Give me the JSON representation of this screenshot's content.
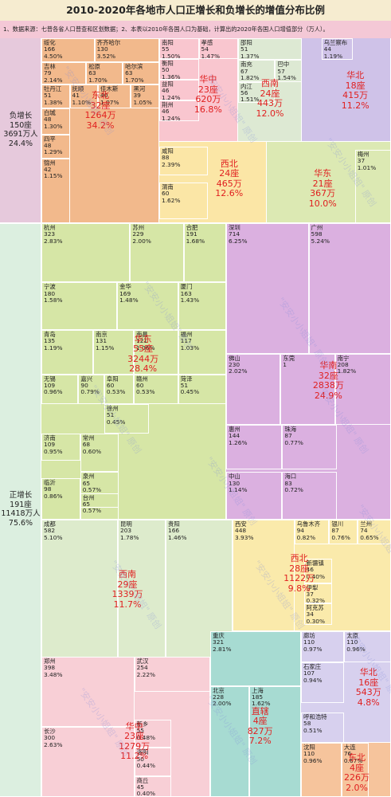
{
  "title": "2010-2020年各地市人口正增长和负增长的增值分布比例",
  "note": "1、数据来源：七普各省人口普查和区划数据；2、本表以2010年各国人口为基础，计算出的2020年各国人口增值部分（万人）。",
  "chart_data": {
    "type": "treemap",
    "title": "2010-2020年各地市人口正增长和负增长的增值分布比例",
    "sides": [
      {
        "name": "负增长",
        "count": "150座",
        "amount": "3691万人",
        "pct": "24.4%"
      },
      {
        "name": "正增长",
        "count": "191座",
        "amount": "11418万人",
        "pct": "75.6%"
      }
    ],
    "groups": [
      {
        "region": "东北",
        "count": "32座",
        "amount": "1264万",
        "pct": "34.2%",
        "color": "#f2b98c",
        "cities": [
          {
            "name": "绥化",
            "value": 166,
            "pct": "4.50%"
          },
          {
            "name": "齐齐哈尔",
            "value": 130,
            "pct": "3.52%"
          },
          {
            "name": "吉林",
            "value": 79,
            "pct": "2.14%"
          },
          {
            "name": "松原",
            "value": 63,
            "pct": "1.70%"
          },
          {
            "name": "哈尔滨",
            "value": 63,
            "pct": "1.70%"
          },
          {
            "name": "牡丹江",
            "value": 51,
            "pct": "1.38%"
          },
          {
            "name": "抚顺",
            "value": 41,
            "pct": "1.10%"
          },
          {
            "name": "佳木斯",
            "value": 40,
            "pct": "1.07%"
          },
          {
            "name": "黑河",
            "value": 39,
            "pct": "1.05%"
          },
          {
            "name": "白城",
            "value": 48,
            "pct": "1.30%"
          },
          {
            "name": "四平",
            "value": 48,
            "pct": "1.29%"
          },
          {
            "name": "锦州",
            "value": 42,
            "pct": "1.15%"
          }
        ]
      },
      {
        "region": "华中",
        "count": "23座",
        "amount": "620万",
        "pct": "16.8%",
        "color": "#f9c6cf",
        "cities": [
          {
            "name": "南阳",
            "value": 55,
            "pct": "1.50%"
          },
          {
            "name": "孝感",
            "value": 54,
            "pct": "1.47%"
          },
          {
            "name": "衡阳",
            "value": 50,
            "pct": "1.36%"
          },
          {
            "name": "益阳",
            "value": 46,
            "pct": "1.24%"
          },
          {
            "name": "荆州",
            "value": 46,
            "pct": "1.24%"
          }
        ]
      },
      {
        "region": "西南",
        "count": "24座",
        "amount": "443万",
        "pct": "12.0%",
        "color": "#dde9d3",
        "cities": [
          {
            "name": "邵阳",
            "value": 51,
            "pct": "1.37%"
          },
          {
            "name": "南充",
            "value": 67,
            "pct": "1.82%"
          },
          {
            "name": "巴中",
            "value": 57,
            "pct": "1.54%"
          },
          {
            "name": "内江",
            "value": 56,
            "pct": "1.51%"
          }
        ]
      },
      {
        "region": "华北",
        "count": "18座",
        "amount": "415万",
        "pct": "11.2%",
        "color": "#cfc2e8",
        "cities": [
          {
            "name": "乌兰察布",
            "value": 44,
            "pct": "1.19%"
          }
        ]
      },
      {
        "region": "西北",
        "count": "24座",
        "amount": "465万",
        "pct": "12.6%",
        "color": "#fbe6a6",
        "cities": [
          {
            "name": "咸阳",
            "value": 88,
            "pct": "2.39%"
          },
          {
            "name": "渭南",
            "value": 60,
            "pct": "1.62%"
          }
        ]
      },
      {
        "region": "华东",
        "count": "21座",
        "amount": "367万",
        "pct": "10.0%",
        "color": "#dce9b3",
        "cities": [
          {
            "name": "梅州",
            "value": 37,
            "pct": "1.01%"
          }
        ]
      },
      {
        "region": "华东",
        "count": "55座",
        "amount": "3244万",
        "pct": "28.4%",
        "color": "#d6e6a6",
        "cities": [
          {
            "name": "杭州",
            "value": 323,
            "pct": "2.83%"
          },
          {
            "name": "苏州",
            "value": 229,
            "pct": "2.00%"
          },
          {
            "name": "合肥",
            "value": 191,
            "pct": "1.68%"
          },
          {
            "name": "宁波",
            "value": 180,
            "pct": "1.58%"
          },
          {
            "name": "金华",
            "value": 169,
            "pct": "1.48%"
          },
          {
            "name": "厦门",
            "value": 163,
            "pct": "1.43%"
          },
          {
            "name": "青岛",
            "value": 135,
            "pct": "1.19%"
          },
          {
            "name": "南京",
            "value": 131,
            "pct": "1.15%"
          },
          {
            "name": "南昌",
            "value": 121,
            "pct": "1.06%"
          },
          {
            "name": "福州",
            "value": 117,
            "pct": "1.03%"
          },
          {
            "name": "无锡",
            "value": 109,
            "pct": "0.96%"
          },
          {
            "name": "嘉兴",
            "value": 90,
            "pct": "0.79%"
          },
          {
            "name": "阜阳",
            "value": 60,
            "pct": "0.53%"
          },
          {
            "name": "赣州",
            "value": 60,
            "pct": "0.53%"
          },
          {
            "name": "菏泽",
            "value": 51,
            "pct": "0.45%"
          },
          {
            "name": "徐州",
            "value": 51,
            "pct": "0.45%"
          },
          {
            "name": "济南",
            "value": 109,
            "pct": "0.95%"
          },
          {
            "name": "常州",
            "value": 68,
            "pct": "0.60%"
          },
          {
            "name": "泉州",
            "value": 65,
            "pct": "0.57%"
          },
          {
            "name": "临沂",
            "value": 98,
            "pct": "0.86%"
          },
          {
            "name": "台州",
            "value": 65,
            "pct": "0.57%"
          }
        ]
      },
      {
        "region": "华南",
        "count": "32座",
        "amount": "2838万",
        "pct": "24.9%",
        "color": "#dbb0e0",
        "cities": [
          {
            "name": "深圳",
            "value": 714,
            "pct": "6.25%"
          },
          {
            "name": "广州",
            "value": 598,
            "pct": "5.24%"
          },
          {
            "name": "佛山",
            "value": 230,
            "pct": "2.02%"
          },
          {
            "name": "东莞",
            "value": 1,
            "pct": ""
          },
          {
            "name": "南宁",
            "value": 208,
            "pct": "1.82%"
          },
          {
            "name": "惠州",
            "value": 144,
            "pct": "1.26%"
          },
          {
            "name": "珠海",
            "value": 87,
            "pct": "0.77%"
          },
          {
            "name": "中山",
            "value": 130,
            "pct": "1.14%"
          },
          {
            "name": "海口",
            "value": 83,
            "pct": "0.72%"
          }
        ]
      },
      {
        "region": "西南",
        "count": "29座",
        "amount": "1339万",
        "pct": "11.7%",
        "color": "#ddebcc",
        "cities": [
          {
            "name": "成都",
            "value": 582,
            "pct": "5.10%"
          },
          {
            "name": "昆明",
            "value": 203,
            "pct": "1.78%"
          },
          {
            "name": "贵阳",
            "value": 166,
            "pct": "1.46%"
          }
        ]
      },
      {
        "region": "西北",
        "count": "28座",
        "amount": "1122万",
        "pct": "9.8%",
        "color": "#faeaab",
        "cities": [
          {
            "name": "西安",
            "value": 448,
            "pct": "3.93%"
          },
          {
            "name": "乌鲁木齐",
            "value": 94,
            "pct": "0.82%"
          },
          {
            "name": "银川",
            "value": 87,
            "pct": "0.76%"
          },
          {
            "name": "兰州",
            "value": 74,
            "pct": "0.65%"
          },
          {
            "name": "新疆镇",
            "value": 46,
            "pct": "0.40%"
          },
          {
            "name": "伊犁",
            "value": 37,
            "pct": "0.32%"
          },
          {
            "name": "阿克苏",
            "value": 34,
            "pct": "0.30%"
          }
        ]
      },
      {
        "region": "直辖",
        "count": "4座",
        "amount": "827万",
        "pct": "7.2%",
        "color": "#a7dbd2",
        "cities": [
          {
            "name": "重庆",
            "value": 321,
            "pct": "2.81%"
          },
          {
            "name": "北京",
            "value": 228,
            "pct": "2.00%"
          },
          {
            "name": "上海",
            "value": 185,
            "pct": "1.62%"
          }
        ]
      },
      {
        "region": "华北",
        "count": "16座",
        "amount": "543万",
        "pct": "4.8%",
        "color": "#d7d0ee",
        "cities": [
          {
            "name": "廊坊",
            "value": 110,
            "pct": "0.97%"
          },
          {
            "name": "太原",
            "value": 110,
            "pct": "0.96%"
          },
          {
            "name": "石家庄",
            "value": 107,
            "pct": "0.94%"
          },
          {
            "name": "呼和浩特",
            "value": 58,
            "pct": "0.51%"
          }
        ]
      },
      {
        "region": "华中",
        "count": "23座",
        "amount": "1279万",
        "pct": "11.2%",
        "color": "#f8cfd6",
        "cities": [
          {
            "name": "郑州",
            "value": 398,
            "pct": "3.48%"
          },
          {
            "name": "武汉",
            "value": 254,
            "pct": "2.22%"
          },
          {
            "name": "长沙",
            "value": 300,
            "pct": "2.63%"
          },
          {
            "name": "新乡",
            "value": 55,
            "pct": "0.48%"
          },
          {
            "name": "洛阳",
            "value": 50,
            "pct": "0.44%"
          },
          {
            "name": "商丘",
            "value": 45,
            "pct": "0.40%"
          }
        ]
      },
      {
        "region": "东北",
        "count": "4座",
        "amount": "226万",
        "pct": "2.0%",
        "color": "#f6c49c",
        "cities": [
          {
            "name": "沈阳",
            "value": 110,
            "pct": "0.96%"
          },
          {
            "name": "大连",
            "value": 76,
            "pct": "0.67%"
          }
        ]
      }
    ],
    "watermark": [
      "\"安安小小姐姐\"",
      "原创"
    ]
  }
}
